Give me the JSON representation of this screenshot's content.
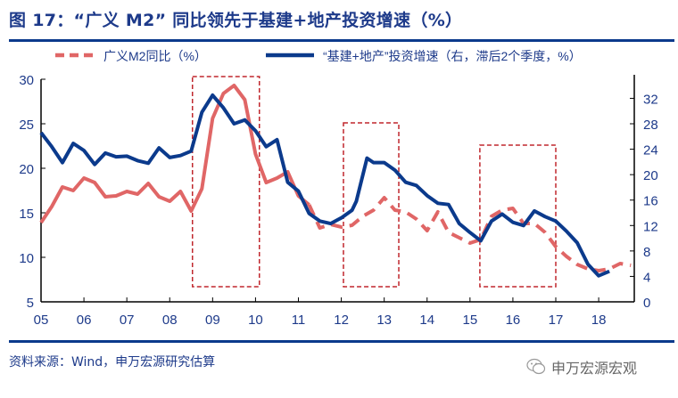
{
  "title": "图 17：“广义 M2” 同比领先于基建+地产投资增速（%）",
  "source": "资料来源：Wind，申万宏源研究估算",
  "watermark": "申万宏源宏观",
  "colors": {
    "m2": "#e06666",
    "invest": "#0b3a8c",
    "box": "#c0272d",
    "text": "#1d3a8a"
  },
  "chart_data": {
    "type": "line",
    "title": "",
    "xlabel": "",
    "ylabel": "",
    "x_ticks": [
      "05",
      "06",
      "07",
      "08",
      "09",
      "10",
      "11",
      "12",
      "13",
      "14",
      "15",
      "16",
      "17",
      "18"
    ],
    "x_tick_years": [
      2005,
      2006,
      2007,
      2008,
      2009,
      2010,
      2011,
      2012,
      2013,
      2014,
      2015,
      2016,
      2017,
      2018
    ],
    "xlim": [
      2005,
      2018.83
    ],
    "ylim_left": [
      5,
      30
    ],
    "yticks_left": [
      5,
      10,
      15,
      20,
      25,
      30
    ],
    "ylim_right": [
      0,
      35
    ],
    "yticks_right": [
      0,
      4,
      8,
      12,
      16,
      20,
      24,
      28,
      32
    ],
    "grid": false,
    "legend_placement": "top",
    "series": [
      {
        "name": "广义M2同比（%）",
        "axis": "left",
        "style": "dashed-after-2011",
        "x": [
          2005,
          2005.25,
          2005.5,
          2005.75,
          2006,
          2006.25,
          2006.5,
          2006.75,
          2007,
          2007.25,
          2007.5,
          2007.75,
          2008,
          2008.25,
          2008.5,
          2008.75,
          2009,
          2009.25,
          2009.5,
          2009.75,
          2010,
          2010.25,
          2010.5,
          2010.75,
          2011,
          2011.25,
          2011.5,
          2011.75,
          2012,
          2012.25,
          2012.5,
          2012.75,
          2013,
          2013.25,
          2013.5,
          2013.75,
          2014,
          2014.25,
          2014.5,
          2014.75,
          2015,
          2015.25,
          2015.5,
          2015.75,
          2016,
          2016.25,
          2016.5,
          2016.75,
          2017,
          2017.25,
          2017.5,
          2017.75,
          2018,
          2018.25,
          2018.5,
          2018.75
        ],
        "values": [
          13.9,
          15.7,
          17.9,
          17.5,
          18.9,
          18.4,
          16.8,
          16.9,
          17.4,
          17.1,
          18.3,
          16.8,
          16.3,
          17.4,
          15.2,
          17.7,
          25.6,
          28.4,
          29.3,
          27.7,
          21.6,
          18.4,
          18.9,
          19.6,
          16.9,
          15.9,
          13.3,
          13.7,
          13.4,
          13.6,
          14.6,
          15.3,
          16.7,
          15.3,
          15.1,
          14.3,
          13.0,
          15.1,
          12.8,
          12.2,
          11.6,
          12.0,
          14.6,
          15.3,
          15.5,
          13.8,
          13.8,
          12.8,
          11.2,
          10.1,
          9.2,
          8.7,
          8.5,
          8.7,
          9.3,
          9.1
        ]
      },
      {
        "name": "“基建+地产”投资增速（右，滞后2个季度，%）",
        "axis": "right",
        "style": "solid",
        "x": [
          2005,
          2005.25,
          2005.5,
          2005.75,
          2006,
          2006.25,
          2006.5,
          2006.75,
          2007,
          2007.25,
          2007.5,
          2007.75,
          2008,
          2008.25,
          2008.5,
          2008.75,
          2009,
          2009.25,
          2009.5,
          2009.75,
          2010,
          2010.25,
          2010.5,
          2010.75,
          2011,
          2011.25,
          2011.5,
          2011.75,
          2012,
          2012.25,
          2012.35,
          2012.6,
          2012.75,
          2013,
          2013.25,
          2013.5,
          2013.75,
          2014,
          2014.25,
          2014.5,
          2014.75,
          2015,
          2015.25,
          2015.5,
          2015.75,
          2016,
          2016.25,
          2016.5,
          2016.75,
          2017,
          2017.25,
          2017.5,
          2017.75,
          2018,
          2018.25
        ],
        "values": [
          26.6,
          24.4,
          21.9,
          24.9,
          23.8,
          21.6,
          23.4,
          22.8,
          22.9,
          22.2,
          21.8,
          24.2,
          22.7,
          23.0,
          23.7,
          29.8,
          32.5,
          30.5,
          28.0,
          28.6,
          26.9,
          24.4,
          25.5,
          18.8,
          17.4,
          13.9,
          12.7,
          12.3,
          13.2,
          14.4,
          15.8,
          22.6,
          21.9,
          21.9,
          20.7,
          18.8,
          18.3,
          16.7,
          15.5,
          15.3,
          12.3,
          10.9,
          9.6,
          12.7,
          13.8,
          12.5,
          12.0,
          14.3,
          13.4,
          12.7,
          11.1,
          9.3,
          5.9,
          4.1,
          4.8
        ]
      }
    ],
    "annotations": [
      {
        "type": "dashed-box",
        "x": [
          2008.53,
          2010.09
        ],
        "y_left": [
          6.7,
          30.3
        ]
      },
      {
        "type": "dashed-box",
        "x": [
          2012.05,
          2013.34
        ],
        "y_left": [
          6.7,
          25.1
        ]
      },
      {
        "type": "dashed-box",
        "x": [
          2015.23,
          2017.0
        ],
        "y_left": [
          6.7,
          22.6
        ]
      }
    ]
  }
}
